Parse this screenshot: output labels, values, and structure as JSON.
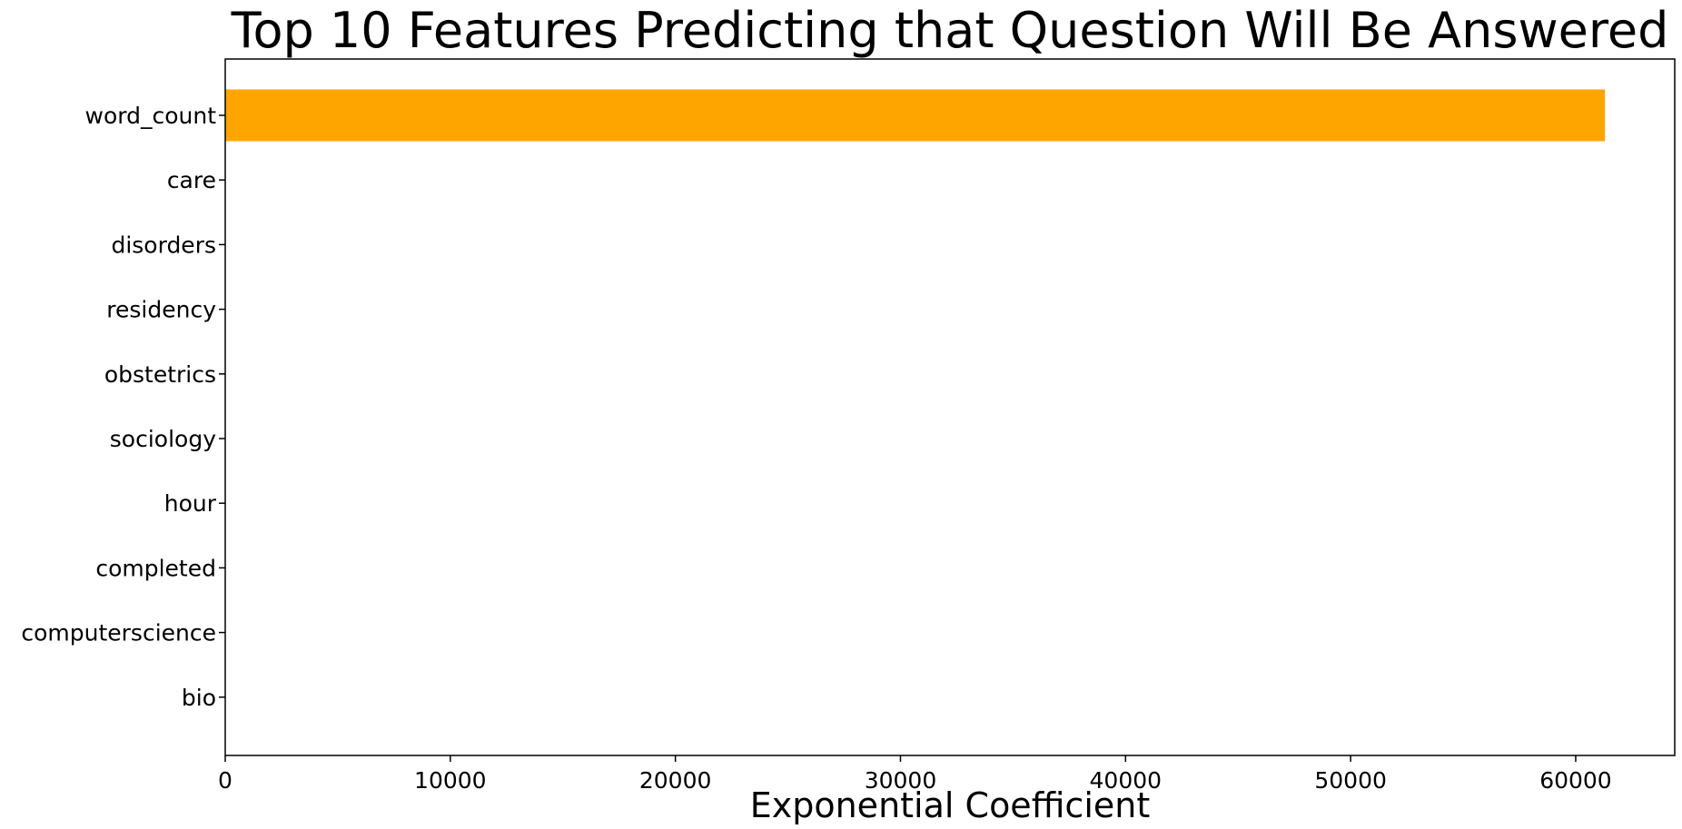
{
  "chart_data": {
    "type": "bar",
    "orientation": "horizontal",
    "title": "Top 10 Features Predicting that Question Will Be Answered",
    "xlabel": "Exponential Coefficient",
    "ylabel": "",
    "categories": [
      "word_count",
      "care",
      "disorders",
      "residency",
      "obstetrics",
      "sociology",
      "hour",
      "completed",
      "computerscience",
      "bio"
    ],
    "values": [
      61300,
      3,
      2.5,
      2.3,
      2.2,
      2.1,
      2,
      1.9,
      1.8,
      1.7
    ],
    "xlim": [
      0,
      64400
    ],
    "xticks": [
      0,
      10000,
      20000,
      30000,
      40000,
      50000,
      60000
    ],
    "xtick_labels": [
      "0",
      "10000",
      "20000",
      "30000",
      "40000",
      "50000",
      "60000"
    ],
    "bar_color": "#ffa500",
    "grid": false,
    "legend": "none"
  }
}
